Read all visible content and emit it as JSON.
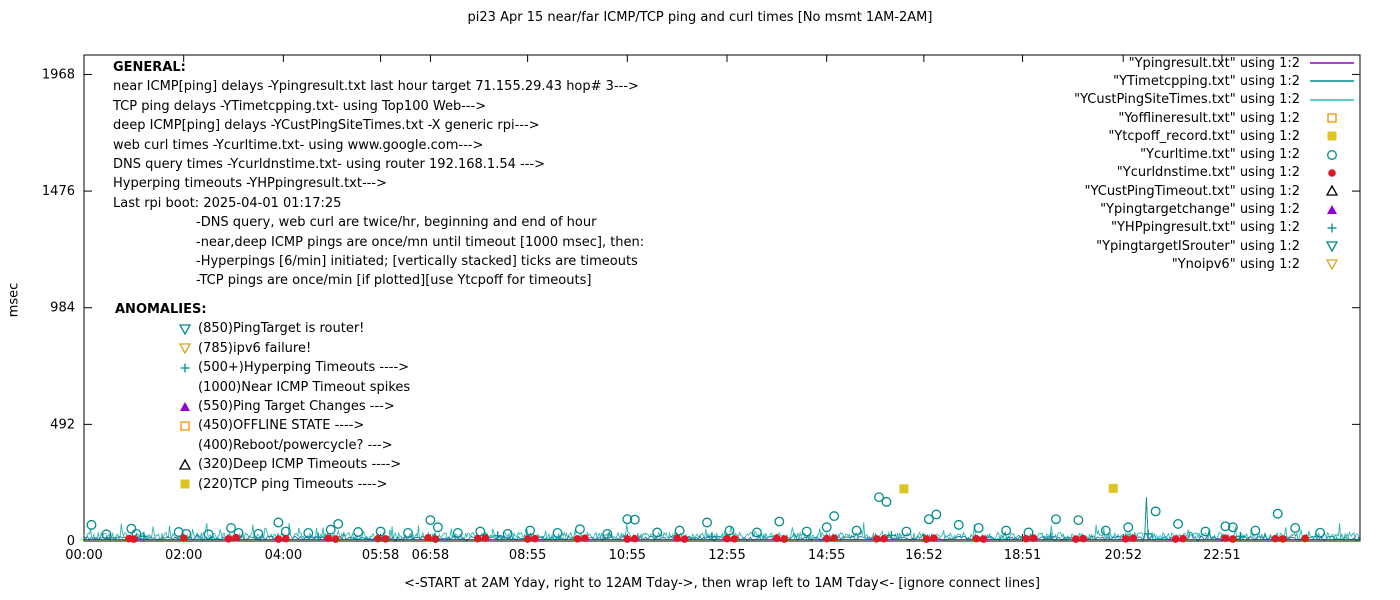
{
  "title": "pi23 Apr 15  near/far ICMP/TCP ping and curl times  [No msmt 1AM-2AM]",
  "axes": {
    "ylabel": "msec",
    "xlabel": "<-START at 2AM Yday, right to 12AM Tday->, then wrap left to 1AM Tday<- [ignore connect lines]"
  },
  "general": {
    "heading": "GENERAL:",
    "lines": [
      "near ICMP[ping] delays -Ypingresult.txt last hour target 71.155.29.43 hop# 3--->",
      "TCP ping delays -YTimetcpping.txt- using Top100 Web--->",
      "deep ICMP[ping] delays -YCustPingSiteTimes.txt -X generic rpi--->",
      "web curl times -Ycurltime.txt- using www.google.com--->",
      "DNS query times -Ycurldnstime.txt- using router 192.168.1.54 --->",
      "Hyperping timeouts -YHPpingresult.txt--->",
      "Last rpi boot: 2025-04-01 01:17:25"
    ],
    "notes": [
      "-DNS query, web curl are twice/hr, beginning and end of hour",
      "-near,deep ICMP pings are once/mn until timeout [1000 msec], then:",
      "-Hyperpings [6/min] initiated; [vertically stacked] ticks are timeouts",
      "-TCP pings are once/min [if plotted][use Ytcpoff for timeouts]"
    ]
  },
  "anomalies": {
    "heading": "ANOMALIES:",
    "items": [
      {
        "marker": "tri-down-open",
        "color": "#008B8B",
        "label": "(850)PingTarget is router!"
      },
      {
        "marker": "tri-down-open",
        "color": "#DAA520",
        "label": "(785)ipv6 failure!"
      },
      {
        "marker": "plus",
        "color": "#008B8B",
        "label": "(500+)Hyperping Timeouts ---->"
      },
      {
        "marker": "none",
        "color": "#000000",
        "label": "(1000)Near ICMP Timeout spikes"
      },
      {
        "marker": "triangle-filled",
        "color": "#9400D3",
        "label": "(550)Ping Target Changes --->"
      },
      {
        "marker": "square-open",
        "color": "#FF8C00",
        "label": "(450)OFFLINE STATE ---->"
      },
      {
        "marker": "none",
        "color": "#000000",
        "label": "(400)Reboot/powercycle? --->"
      },
      {
        "marker": "triangle-open",
        "color": "#000000",
        "label": "(320)Deep ICMP Timeouts ---->"
      },
      {
        "marker": "square-filled",
        "color": "#DCC520",
        "label": "(220)TCP ping Timeouts ---->"
      }
    ]
  },
  "legend": {
    "entries": [
      {
        "label": "\"Ypingresult.txt\" using 1:2",
        "sample": "line",
        "color": "#9400D3"
      },
      {
        "label": "\"YTimetcpping.txt\" using 1:2",
        "sample": "line",
        "color": "#008B8B"
      },
      {
        "label": "\"YCustPingSiteTimes.txt\" using 1:2",
        "sample": "line",
        "color": "#2FB8B0"
      },
      {
        "label": "\"Yofflineresult.txt\" using 1:2",
        "sample": "square-open",
        "color": "#FF8C00"
      },
      {
        "label": "\"Ytcpoff_record.txt\" using 1:2",
        "sample": "square-filled",
        "color": "#DCC520"
      },
      {
        "label": "\"Ycurltime.txt\" using 1:2",
        "sample": "circle-open",
        "color": "#008B8B"
      },
      {
        "label": "\"Ycurldnstime.txt\" using 1:2",
        "sample": "circle-filled",
        "color": "#E0162B"
      },
      {
        "label": "\"YCustPingTimeout.txt\" using 1:2",
        "sample": "triangle-open",
        "color": "#000000"
      },
      {
        "label": "\"Ypingtargetchange\" using 1:2",
        "sample": "triangle-filled",
        "color": "#9400D3"
      },
      {
        "label": "\"YHPpingresult.txt\" using 1:2",
        "sample": "plus",
        "color": "#008B8B"
      },
      {
        "label": "\"YpingtargetISrouter\" using 1:2",
        "sample": "tri-down-open",
        "color": "#008B8B"
      },
      {
        "label": "\"Ynoipv6\" using 1:2",
        "sample": "tri-down-open",
        "color": "#DAA520"
      }
    ]
  },
  "chart_data": {
    "type": "line",
    "title": "pi23 Apr 15  near/far ICMP/TCP ping and curl times  [No msmt 1AM-2AM]",
    "xlabel": "<-START at 2AM Yday, right to 12AM Tday->, then wrap left to 1AM Tday<- [ignore connect lines]",
    "ylabel": "msec",
    "xlim": [
      0,
      25.6
    ],
    "ylim": [
      0,
      2050
    ],
    "yticks": [
      0,
      492,
      984,
      1476,
      1968
    ],
    "xticks": [
      {
        "label": "00:00",
        "h": 0
      },
      {
        "label": "02:00",
        "h": 2
      },
      {
        "label": "04:00",
        "h": 4
      },
      {
        "label": "05:58",
        "h": 5.95
      },
      {
        "label": "06:58",
        "h": 6.95
      },
      {
        "label": "08:55",
        "h": 8.9
      },
      {
        "label": "10:55",
        "h": 10.9
      },
      {
        "label": "12:55",
        "h": 12.9
      },
      {
        "label": "14:55",
        "h": 14.9
      },
      {
        "label": "16:52",
        "h": 16.85
      },
      {
        "label": "18:51",
        "h": 18.83
      },
      {
        "label": "20:52",
        "h": 20.85
      },
      {
        "label": "22:51",
        "h": 22.83
      }
    ],
    "series": [
      {
        "name": "YCustPingSiteTimes.txt",
        "mode": "noise-line",
        "color": "#2FB8B0",
        "base": 6,
        "amp": 30,
        "step": 0.022,
        "seed": 5,
        "spikes": []
      },
      {
        "name": "YTimetcpping.txt",
        "mode": "noise-line",
        "color": "#008B8B",
        "base": 4,
        "amp": 16,
        "step": 0.035,
        "seed": 11,
        "spikes": [
          [
            21.3,
            185
          ]
        ]
      },
      {
        "name": "Ypingresult.txt",
        "mode": "line",
        "color": "#9400D3",
        "points": [
          [
            0,
            6
          ],
          [
            25.6,
            6
          ]
        ]
      },
      {
        "name": "YHPpingresult.txt",
        "mode": "scatter",
        "marker": "plus",
        "color": "#008B8B",
        "points": [
          [
            1.2,
            20
          ],
          [
            4.7,
            16
          ],
          [
            8.3,
            22
          ],
          [
            12.6,
            18
          ],
          [
            16.2,
            24
          ],
          [
            19.4,
            17
          ],
          [
            21.35,
            30
          ],
          [
            23.2,
            20
          ]
        ]
      },
      {
        "name": "Ycurltime.txt",
        "mode": "scatter",
        "marker": "circle-open",
        "color": "#008B8B",
        "points": [
          [
            0.15,
            68
          ],
          [
            0.45,
            28
          ],
          [
            0.95,
            52
          ],
          [
            1.05,
            30
          ],
          [
            1.9,
            38
          ],
          [
            2.05,
            30
          ],
          [
            2.5,
            28
          ],
          [
            2.95,
            55
          ],
          [
            3.1,
            34
          ],
          [
            3.5,
            30
          ],
          [
            3.9,
            78
          ],
          [
            4.05,
            40
          ],
          [
            4.5,
            34
          ],
          [
            4.95,
            48
          ],
          [
            5.1,
            72
          ],
          [
            5.5,
            38
          ],
          [
            5.95,
            40
          ],
          [
            6.5,
            34
          ],
          [
            6.95,
            88
          ],
          [
            7.1,
            58
          ],
          [
            7.5,
            34
          ],
          [
            7.95,
            40
          ],
          [
            8.5,
            30
          ],
          [
            8.95,
            44
          ],
          [
            9.5,
            34
          ],
          [
            9.95,
            50
          ],
          [
            10.5,
            30
          ],
          [
            10.9,
            92
          ],
          [
            11.05,
            90
          ],
          [
            11.5,
            36
          ],
          [
            11.95,
            44
          ],
          [
            12.5,
            78
          ],
          [
            12.95,
            44
          ],
          [
            13.5,
            36
          ],
          [
            13.95,
            82
          ],
          [
            14.5,
            40
          ],
          [
            14.9,
            58
          ],
          [
            15.05,
            105
          ],
          [
            15.5,
            44
          ],
          [
            15.95,
            185
          ],
          [
            16.1,
            165
          ],
          [
            16.5,
            40
          ],
          [
            16.95,
            92
          ],
          [
            17.1,
            112
          ],
          [
            17.55,
            68
          ],
          [
            17.95,
            55
          ],
          [
            18.5,
            44
          ],
          [
            18.95,
            36
          ],
          [
            19.5,
            92
          ],
          [
            19.95,
            88
          ],
          [
            20.5,
            44
          ],
          [
            20.95,
            58
          ],
          [
            21.5,
            125
          ],
          [
            21.95,
            72
          ],
          [
            22.5,
            40
          ],
          [
            22.9,
            62
          ],
          [
            23.05,
            58
          ],
          [
            23.5,
            44
          ],
          [
            23.95,
            115
          ],
          [
            24.3,
            55
          ],
          [
            24.8,
            35
          ]
        ]
      },
      {
        "name": "Ycurldnstime.txt",
        "mode": "scatter",
        "marker": "circle-filled",
        "color": "#E0162B",
        "points": [
          [
            0.9,
            10
          ],
          [
            1.0,
            8
          ],
          [
            2.0,
            12
          ],
          [
            2.9,
            9
          ],
          [
            3.05,
            14
          ],
          [
            3.9,
            8
          ],
          [
            4.05,
            10
          ],
          [
            4.9,
            12
          ],
          [
            5.05,
            8
          ],
          [
            5.9,
            10
          ],
          [
            6.05,
            9
          ],
          [
            6.9,
            13
          ],
          [
            7.05,
            8
          ],
          [
            7.9,
            10
          ],
          [
            8.05,
            12
          ],
          [
            8.9,
            8
          ],
          [
            9.05,
            10
          ],
          [
            9.9,
            9
          ],
          [
            10.05,
            12
          ],
          [
            10.9,
            8
          ],
          [
            11.05,
            10
          ],
          [
            11.9,
            12
          ],
          [
            12.05,
            8
          ],
          [
            12.9,
            10
          ],
          [
            13.05,
            9
          ],
          [
            13.9,
            12
          ],
          [
            14.05,
            8
          ],
          [
            14.9,
            10
          ],
          [
            15.05,
            12
          ],
          [
            15.9,
            9
          ],
          [
            16.05,
            10
          ],
          [
            16.9,
            8
          ],
          [
            17.05,
            12
          ],
          [
            17.9,
            10
          ],
          [
            18.05,
            8
          ],
          [
            18.9,
            10
          ],
          [
            19.05,
            12
          ],
          [
            19.9,
            8
          ],
          [
            20.05,
            10
          ],
          [
            20.9,
            9
          ],
          [
            21.05,
            12
          ],
          [
            21.9,
            8
          ],
          [
            22.05,
            10
          ],
          [
            22.9,
            12
          ],
          [
            23.05,
            8
          ],
          [
            23.9,
            10
          ],
          [
            24.05,
            9
          ],
          [
            24.5,
            11
          ]
        ]
      },
      {
        "name": "Ytcpoff_record.txt",
        "mode": "scatter",
        "marker": "square-filled",
        "color": "#DCC520",
        "points": [
          [
            16.45,
            220
          ],
          [
            20.65,
            222
          ]
        ]
      },
      {
        "name": "Yofflineresult.txt",
        "mode": "scatter",
        "marker": "square-open",
        "color": "#FF8C00",
        "points": []
      },
      {
        "name": "YCustPingTimeout.txt",
        "mode": "scatter",
        "marker": "triangle-open",
        "color": "#000000",
        "points": []
      },
      {
        "name": "Ypingtargetchange",
        "mode": "scatter",
        "marker": "triangle-filled",
        "color": "#9400D3",
        "points": []
      },
      {
        "name": "YpingtargetISrouter",
        "mode": "scatter",
        "marker": "tri-down-open",
        "color": "#008B8B",
        "points": []
      },
      {
        "name": "Ynoipv6",
        "mode": "scatter",
        "marker": "tri-down-open",
        "color": "#DAA520",
        "points": []
      }
    ]
  }
}
